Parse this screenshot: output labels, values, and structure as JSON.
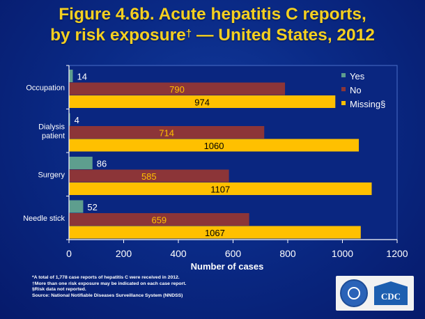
{
  "title": {
    "line1": "Figure 4.6b.  Acute hepatitis C reports,",
    "line2a": "by risk exposure",
    "dagger": "†",
    "line2b": " — United States, 2012"
  },
  "chart_data": {
    "type": "bar",
    "orientation": "horizontal",
    "categories": [
      "Occupation",
      "Dialysis patient",
      "Surgery",
      "Needle stick"
    ],
    "category_lines": [
      [
        "Occupation"
      ],
      [
        "Dialysis",
        "patient"
      ],
      [
        "Surgery"
      ],
      [
        "Needle stick"
      ]
    ],
    "series": [
      {
        "name": "Yes",
        "values": [
          14,
          4,
          86,
          52
        ],
        "color": "#5e9e8e"
      },
      {
        "name": "No",
        "values": [
          790,
          714,
          585,
          659
        ],
        "color": "#8c3538"
      },
      {
        "name": "Missing§",
        "values": [
          974,
          1060,
          1107,
          1067
        ],
        "color": "#ffc000"
      }
    ],
    "xlabel": "Number of cases",
    "ylabel": "",
    "xlim": [
      0,
      1200
    ],
    "xticks": [
      0,
      200,
      400,
      600,
      800,
      1000,
      1200
    ],
    "grid": false,
    "legend_position": "top-right",
    "label_colors": {
      "Yes": "#ffffff",
      "No": "#ffc000",
      "Missing§": "#000000"
    }
  },
  "footnotes": [
    "*A total of 1,778 case reports of hepatitis C were received in 2012.",
    "†More than one risk exposure may be indicated on each case report.",
    "§Risk data not reported.",
    "Source: National Notifiable Diseases Surveillance System (NNDSS)"
  ],
  "logo": {
    "cdc_text": "CDC",
    "seal_name": "hhs-seal-logo"
  }
}
